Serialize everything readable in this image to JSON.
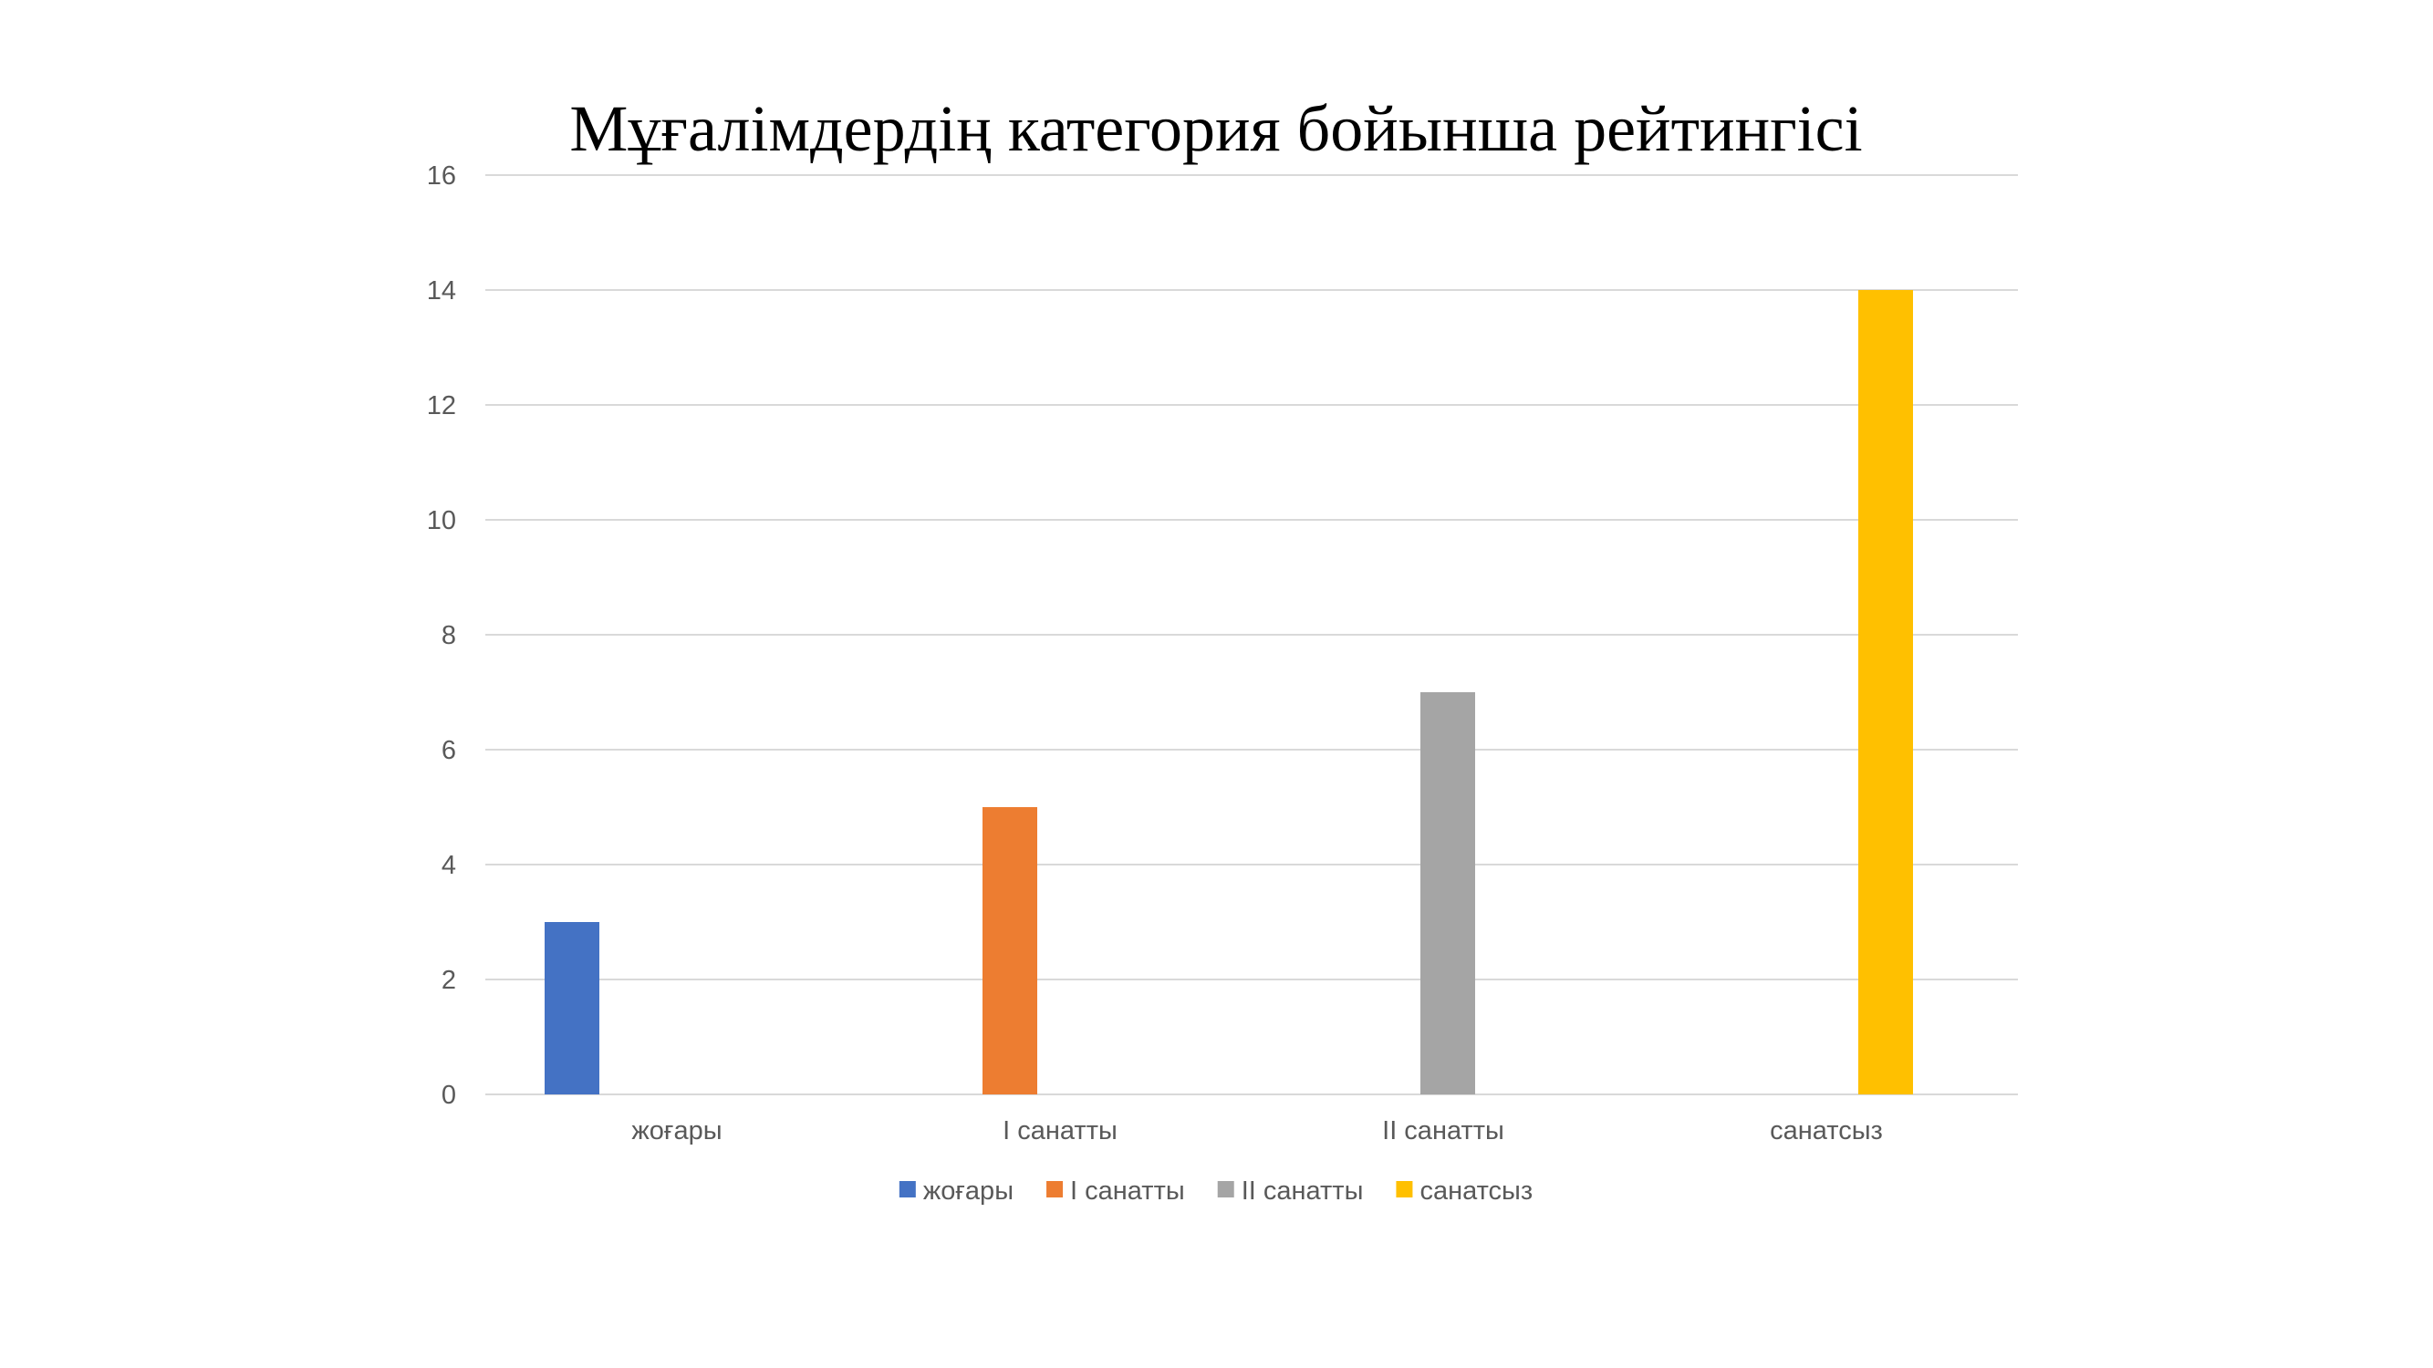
{
  "chart_data": {
    "type": "bar",
    "title": "Мұғалімдердің категория бойынша рейтингісі",
    "categories": [
      "жоғары",
      "І санатты",
      "ІІ санатты",
      "санатсыз"
    ],
    "series": [
      {
        "name": "жоғары",
        "values": [
          3,
          null,
          null,
          null
        ],
        "color": "#4472C4"
      },
      {
        "name": "І санатты",
        "values": [
          null,
          5,
          null,
          null
        ],
        "color": "#ED7D31"
      },
      {
        "name": "ІІ санатты",
        "values": [
          null,
          null,
          7,
          null
        ],
        "color": "#A5A5A5"
      },
      {
        "name": "санатсыз",
        "values": [
          null,
          null,
          null,
          14
        ],
        "color": "#FFC000"
      }
    ],
    "yticks": [
      "0",
      "2",
      "4",
      "6",
      "8",
      "10",
      "12",
      "14",
      "16"
    ],
    "ylim": [
      0,
      16
    ],
    "grid": true,
    "legend": "bottom",
    "xlabel": "",
    "ylabel": ""
  }
}
